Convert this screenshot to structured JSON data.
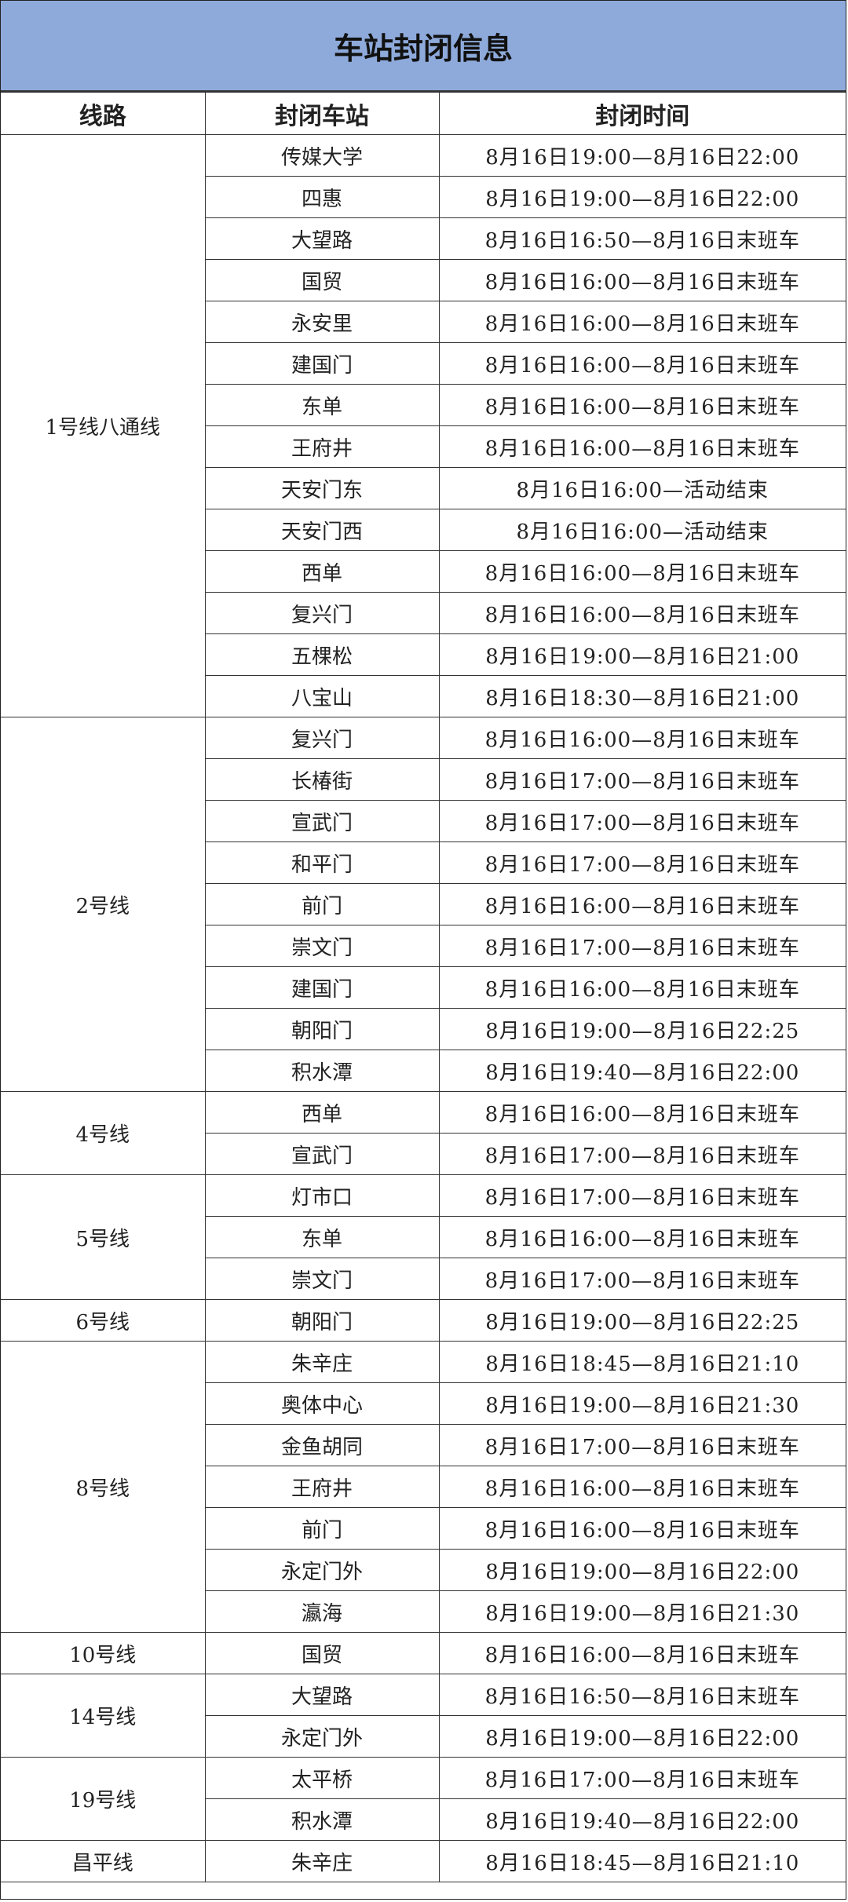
{
  "title": "车站封闭信息",
  "headers": {
    "line": "线路",
    "station": "封闭车站",
    "time": "封闭时间"
  },
  "colors": {
    "title_bg": "#8eaadb",
    "border": "#333333"
  },
  "groups": [
    {
      "line": "1号线八通线",
      "rows": [
        {
          "station": "传媒大学",
          "time": "8月16日19:00—8月16日22:00"
        },
        {
          "station": "四惠",
          "time": "8月16日19:00—8月16日22:00"
        },
        {
          "station": "大望路",
          "time": "8月16日16:50—8月16日末班车"
        },
        {
          "station": "国贸",
          "time": "8月16日16:00—8月16日末班车"
        },
        {
          "station": "永安里",
          "time": "8月16日16:00—8月16日末班车"
        },
        {
          "station": "建国门",
          "time": "8月16日16:00—8月16日末班车"
        },
        {
          "station": "东单",
          "time": "8月16日16:00—8月16日末班车"
        },
        {
          "station": "王府井",
          "time": "8月16日16:00—8月16日末班车"
        },
        {
          "station": "天安门东",
          "time": "8月16日16:00—活动结束"
        },
        {
          "station": "天安门西",
          "time": "8月16日16:00—活动结束"
        },
        {
          "station": "西单",
          "time": "8月16日16:00—8月16日末班车"
        },
        {
          "station": "复兴门",
          "time": "8月16日16:00—8月16日末班车"
        },
        {
          "station": "五棵松",
          "time": "8月16日19:00—8月16日21:00"
        },
        {
          "station": "八宝山",
          "time": "8月16日18:30—8月16日21:00"
        }
      ]
    },
    {
      "line": "2号线",
      "rows": [
        {
          "station": "复兴门",
          "time": "8月16日16:00—8月16日末班车"
        },
        {
          "station": "长椿街",
          "time": "8月16日17:00—8月16日末班车"
        },
        {
          "station": "宣武门",
          "time": "8月16日17:00—8月16日末班车"
        },
        {
          "station": "和平门",
          "time": "8月16日17:00—8月16日末班车"
        },
        {
          "station": "前门",
          "time": "8月16日16:00—8月16日末班车"
        },
        {
          "station": "崇文门",
          "time": "8月16日17:00—8月16日末班车"
        },
        {
          "station": "建国门",
          "time": "8月16日16:00—8月16日末班车"
        },
        {
          "station": "朝阳门",
          "time": "8月16日19:00—8月16日22:25"
        },
        {
          "station": "积水潭",
          "time": "8月16日19:40—8月16日22:00"
        }
      ]
    },
    {
      "line": "4号线",
      "rows": [
        {
          "station": "西单",
          "time": "8月16日16:00—8月16日末班车"
        },
        {
          "station": "宣武门",
          "time": "8月16日17:00—8月16日末班车"
        }
      ]
    },
    {
      "line": "5号线",
      "rows": [
        {
          "station": "灯市口",
          "time": "8月16日17:00—8月16日末班车"
        },
        {
          "station": "东单",
          "time": "8月16日16:00—8月16日末班车"
        },
        {
          "station": "崇文门",
          "time": "8月16日17:00—8月16日末班车"
        }
      ]
    },
    {
      "line": "6号线",
      "rows": [
        {
          "station": "朝阳门",
          "time": "8月16日19:00—8月16日22:25"
        }
      ]
    },
    {
      "line": "8号线",
      "rows": [
        {
          "station": "朱辛庄",
          "time": "8月16日18:45—8月16日21:10"
        },
        {
          "station": "奥体中心",
          "time": "8月16日19:00—8月16日21:30"
        },
        {
          "station": "金鱼胡同",
          "time": "8月16日17:00—8月16日末班车"
        },
        {
          "station": "王府井",
          "time": "8月16日16:00—8月16日末班车"
        },
        {
          "station": "前门",
          "time": "8月16日16:00—8月16日末班车"
        },
        {
          "station": "永定门外",
          "time": "8月16日19:00—8月16日22:00"
        },
        {
          "station": "瀛海",
          "time": "8月16日19:00—8月16日21:30"
        }
      ]
    },
    {
      "line": "10号线",
      "rows": [
        {
          "station": "国贸",
          "time": "8月16日16:00—8月16日末班车"
        }
      ]
    },
    {
      "line": "14号线",
      "rows": [
        {
          "station": "大望路",
          "time": "8月16日16:50—8月16日末班车"
        },
        {
          "station": "永定门外",
          "time": "8月16日19:00—8月16日22:00"
        }
      ]
    },
    {
      "line": "19号线",
      "rows": [
        {
          "station": "太平桥",
          "time": "8月16日17:00—8月16日末班车"
        },
        {
          "station": "积水潭",
          "time": "8月16日19:40—8月16日22:00"
        }
      ]
    },
    {
      "line": "昌平线",
      "rows": [
        {
          "station": "朱辛庄",
          "time": "8月16日18:45—8月16日21:10"
        }
      ]
    }
  ]
}
